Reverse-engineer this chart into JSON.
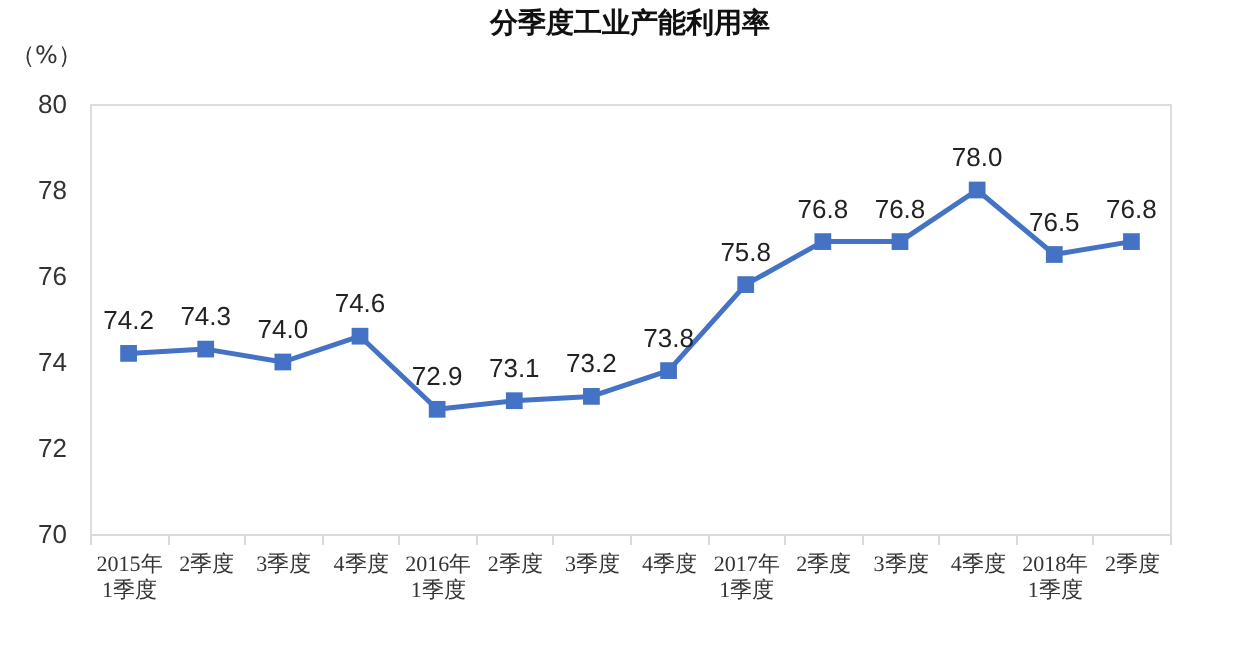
{
  "chart_data": {
    "type": "line",
    "title": "分季度工业产能利用率",
    "ylabel": "（%）",
    "categories": [
      "2015年\n1季度",
      "2季度",
      "3季度",
      "4季度",
      "2016年\n1季度",
      "2季度",
      "3季度",
      "4季度",
      "2017年\n1季度",
      "2季度",
      "3季度",
      "4季度",
      "2018年\n1季度",
      "2季度"
    ],
    "series": [
      {
        "color": "#4472c4",
        "values": [
          74.2,
          74.3,
          74.0,
          74.6,
          72.9,
          73.1,
          73.2,
          73.8,
          75.8,
          76.8,
          76.8,
          78.0,
          76.5,
          76.8
        ],
        "value_labels": [
          "74.2",
          "74.3",
          "74.0",
          "74.6",
          "72.9",
          "73.1",
          "73.2",
          "73.8",
          "75.8",
          "76.8",
          "76.8",
          "78.0",
          "76.5",
          "76.8"
        ]
      }
    ],
    "ylim": [
      70,
      80
    ],
    "yticks": [
      70,
      72,
      74,
      76,
      78,
      80
    ],
    "grid": false,
    "legend": false,
    "marker": "square",
    "line_style": "solid"
  }
}
